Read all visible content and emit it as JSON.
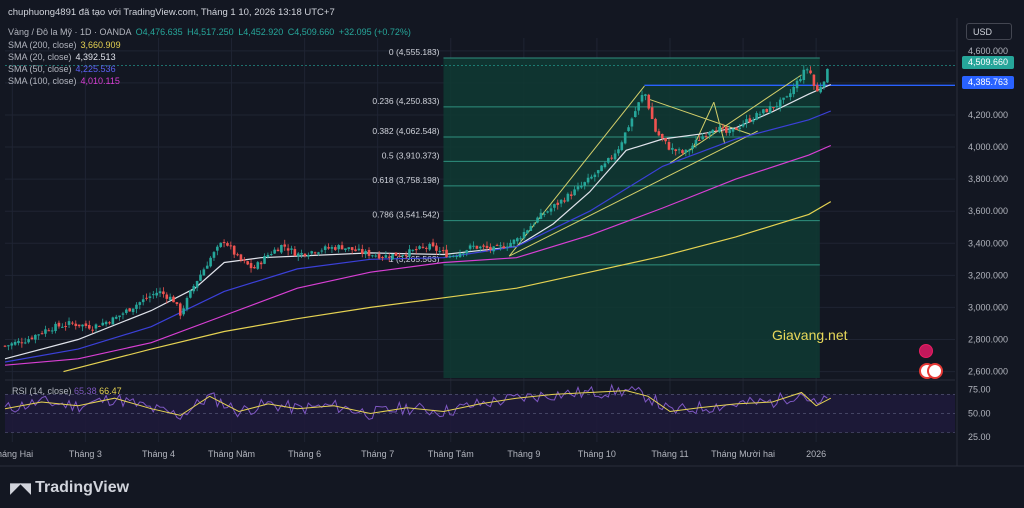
{
  "header": {
    "title": "chuphuong4891 đã tạo với TradingView.com, Tháng 1 10, 2026 13:18 UTC+7",
    "symbol": "Vàng / Đô la Mỹ · 1D · OANDA",
    "open": "O4,476.635",
    "high": "H4,517.250",
    "low": "L4,452.920",
    "close": "C4,509.660",
    "change": "+32.095 (+0.72%)"
  },
  "indicators": [
    {
      "label": "SMA (200, close)",
      "value": "3,660.909",
      "color": "#e5d252"
    },
    {
      "label": "SMA (20, close)",
      "value": "4,392.513",
      "color": "#e0e3eb"
    },
    {
      "label": "SMA (50, close)",
      "value": "4,225.536",
      "color": "#3b40d9"
    },
    {
      "label": "SMA (100, close)",
      "value": "4,010.115",
      "color": "#d83fd4"
    }
  ],
  "currency": "USD",
  "price_tags": [
    {
      "value": "4,509.660",
      "color": "#26a69a"
    },
    {
      "value": "4,385.763",
      "color": "#2962ff"
    }
  ],
  "watermark": "Giavang.net",
  "rsi": {
    "label": "RSI (14, close)",
    "value1": "65.38",
    "value2": "66.47",
    "ticks": [
      "75.00",
      "50.00",
      "25.00"
    ]
  },
  "brand": "TradingView",
  "chart_data": {
    "type": "candlestick",
    "yticks": [
      4600,
      4400,
      4200,
      4000,
      3800,
      3600,
      3400,
      3200,
      3000,
      2800,
      2600
    ],
    "ytick_labels": [
      "4,600.000",
      "4,400.000",
      "4,200.000",
      "4,000.000",
      "3,800.000",
      "3,600.000",
      "3,400.000",
      "3,200.000",
      "3,000.000",
      "2,800.000",
      "2,600.000"
    ],
    "ylim": [
      2560,
      4680
    ],
    "xlim": [
      0,
      13
    ],
    "xticks": [
      {
        "x": 0.1,
        "label": "Tháng Hai"
      },
      {
        "x": 1.1,
        "label": "Tháng 3"
      },
      {
        "x": 2.1,
        "label": "Tháng 4"
      },
      {
        "x": 3.1,
        "label": "Tháng Năm"
      },
      {
        "x": 4.1,
        "label": "Tháng 6"
      },
      {
        "x": 5.1,
        "label": "Tháng 7"
      },
      {
        "x": 6.1,
        "label": "Tháng Tám"
      },
      {
        "x": 7.1,
        "label": "Tháng 9"
      },
      {
        "x": 8.1,
        "label": "Tháng 10"
      },
      {
        "x": 9.1,
        "label": "Tháng 11"
      },
      {
        "x": 10.1,
        "label": "Tháng Mười hai"
      },
      {
        "x": 11.1,
        "label": "2026"
      }
    ],
    "price_path": [
      [
        0,
        2760
      ],
      [
        0.3,
        2800
      ],
      [
        0.6,
        2870
      ],
      [
        0.9,
        2900
      ],
      [
        1.2,
        2880
      ],
      [
        1.5,
        2930
      ],
      [
        1.8,
        3020
      ],
      [
        2.1,
        3100
      ],
      [
        2.3,
        3050
      ],
      [
        2.4,
        2960
      ],
      [
        2.6,
        3150
      ],
      [
        2.8,
        3300
      ],
      [
        3.0,
        3420
      ],
      [
        3.2,
        3300
      ],
      [
        3.4,
        3240
      ],
      [
        3.6,
        3330
      ],
      [
        3.8,
        3390
      ],
      [
        4.0,
        3330
      ],
      [
        4.3,
        3360
      ],
      [
        4.6,
        3380
      ],
      [
        4.9,
        3340
      ],
      [
        5.2,
        3320
      ],
      [
        5.5,
        3340
      ],
      [
        5.8,
        3380
      ],
      [
        6.1,
        3320
      ],
      [
        6.4,
        3380
      ],
      [
        6.7,
        3360
      ],
      [
        7.0,
        3420
      ],
      [
        7.3,
        3560
      ],
      [
        7.6,
        3660
      ],
      [
        7.9,
        3760
      ],
      [
        8.2,
        3880
      ],
      [
        8.4,
        4000
      ],
      [
        8.6,
        4200
      ],
      [
        8.75,
        4350
      ],
      [
        8.9,
        4100
      ],
      [
        9.1,
        3990
      ],
      [
        9.3,
        3960
      ],
      [
        9.5,
        4050
      ],
      [
        9.7,
        4130
      ],
      [
        9.9,
        4080
      ],
      [
        10.1,
        4150
      ],
      [
        10.3,
        4200
      ],
      [
        10.5,
        4250
      ],
      [
        10.7,
        4300
      ],
      [
        10.9,
        4450
      ],
      [
        11.0,
        4500
      ],
      [
        11.1,
        4330
      ],
      [
        11.2,
        4420
      ],
      [
        11.3,
        4510
      ]
    ],
    "sma": [
      {
        "name": "SMA (20, close)",
        "color": "#e0e3eb",
        "values": [
          [
            0,
            2680
          ],
          [
            1,
            2800
          ],
          [
            2,
            2980
          ],
          [
            2.6,
            3120
          ],
          [
            3,
            3280
          ],
          [
            3.5,
            3310
          ],
          [
            4,
            3320
          ],
          [
            5,
            3340
          ],
          [
            6,
            3330
          ],
          [
            7,
            3380
          ],
          [
            7.5,
            3520
          ],
          [
            8,
            3720
          ],
          [
            8.5,
            3980
          ],
          [
            9,
            4050
          ],
          [
            9.5,
            4080
          ],
          [
            10,
            4120
          ],
          [
            10.5,
            4220
          ],
          [
            11,
            4330
          ],
          [
            11.3,
            4390
          ]
        ]
      },
      {
        "name": "SMA (50, close)",
        "color": "#3b40d9",
        "values": [
          [
            0,
            2660
          ],
          [
            1,
            2740
          ],
          [
            2,
            2880
          ],
          [
            3,
            3100
          ],
          [
            4,
            3240
          ],
          [
            5,
            3300
          ],
          [
            6,
            3310
          ],
          [
            7,
            3380
          ],
          [
            8,
            3600
          ],
          [
            9,
            3880
          ],
          [
            10,
            4050
          ],
          [
            11,
            4170
          ],
          [
            11.3,
            4225
          ]
        ]
      },
      {
        "name": "SMA (100, close)",
        "color": "#d83fd4",
        "values": [
          [
            0,
            2640
          ],
          [
            1,
            2680
          ],
          [
            2,
            2780
          ],
          [
            3,
            2950
          ],
          [
            4,
            3120
          ],
          [
            5,
            3220
          ],
          [
            6,
            3280
          ],
          [
            7,
            3310
          ],
          [
            8,
            3450
          ],
          [
            9,
            3620
          ],
          [
            10,
            3800
          ],
          [
            11,
            3950
          ],
          [
            11.3,
            4010
          ]
        ]
      },
      {
        "name": "SMA (200, close)",
        "color": "#e5d252",
        "values": [
          [
            0.8,
            2600
          ],
          [
            2,
            2740
          ],
          [
            3,
            2850
          ],
          [
            4,
            2930
          ],
          [
            5,
            3000
          ],
          [
            6,
            3060
          ],
          [
            7,
            3120
          ],
          [
            8,
            3220
          ],
          [
            9,
            3320
          ],
          [
            10,
            3440
          ],
          [
            11,
            3580
          ],
          [
            11.3,
            3660
          ]
        ]
      }
    ],
    "fib": {
      "x_start": 6.0,
      "x_end": 11.15,
      "levels": [
        {
          "ratio": "0",
          "value": 4555.183,
          "label": "0 (4,555.183)"
        },
        {
          "ratio": "0.236",
          "value": 4250.833,
          "label": "0.236 (4,250.833)"
        },
        {
          "ratio": "0.382",
          "value": 4062.548,
          "label": "0.382 (4,062.548)"
        },
        {
          "ratio": "0.5",
          "value": 3910.373,
          "label": "0.5 (3,910.373)"
        },
        {
          "ratio": "0.618",
          "value": 3758.198,
          "label": "0.618 (3,758.198)"
        },
        {
          "ratio": "0.786",
          "value": 3541.542,
          "label": "0.786 (3,541.542)"
        },
        {
          "ratio": "1",
          "value": 3265.563,
          "label": "1 (3,265.563)"
        }
      ]
    },
    "rsi_values": [
      [
        0,
        55
      ],
      [
        0.5,
        62
      ],
      [
        1,
        58
      ],
      [
        1.5,
        66
      ],
      [
        2,
        55
      ],
      [
        2.4,
        48
      ],
      [
        2.8,
        68
      ],
      [
        3.2,
        52
      ],
      [
        3.6,
        60
      ],
      [
        4,
        55
      ],
      [
        4.5,
        58
      ],
      [
        5,
        50
      ],
      [
        5.5,
        56
      ],
      [
        6,
        52
      ],
      [
        6.5,
        60
      ],
      [
        7,
        66
      ],
      [
        7.5,
        70
      ],
      [
        8,
        72
      ],
      [
        8.5,
        74
      ],
      [
        8.8,
        68
      ],
      [
        9.1,
        52
      ],
      [
        9.5,
        56
      ],
      [
        10,
        60
      ],
      [
        10.5,
        62
      ],
      [
        10.9,
        72
      ],
      [
        11.1,
        58
      ],
      [
        11.3,
        66
      ]
    ],
    "rsi_ylim": [
      20,
      82
    ]
  }
}
